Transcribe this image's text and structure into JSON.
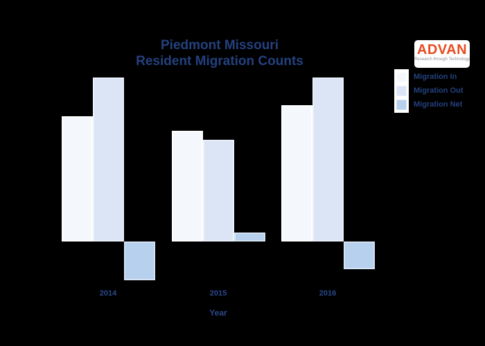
{
  "page": {
    "background": "#000000"
  },
  "logo": {
    "brand": "ADVAN",
    "tagline": "Research through Technology",
    "brand_color": "#e84a1f"
  },
  "chart_data": {
    "type": "bar",
    "title_line1": "Piedmont Missouri",
    "title_line2": "Resident Migration Counts",
    "xlabel": "Year",
    "ylabel": "",
    "categories": [
      "2014",
      "2015",
      "2016"
    ],
    "series": [
      {
        "name": "Migration In",
        "color": "#f4f8fd",
        "edge": "#ffffff",
        "values": [
          181,
          160,
          197
        ]
      },
      {
        "name": "Migration Out",
        "color": "#dbe5f6",
        "edge": "#ecf1fb",
        "values": [
          237,
          147,
          237
        ]
      },
      {
        "name": "Migration Net",
        "color": "#b6d0ed",
        "edge": "#d6e3f4",
        "values": [
          -56,
          13,
          -40
        ]
      }
    ],
    "legend_position": "upper right",
    "grid": false,
    "y_axis_visible": false,
    "baseline_value": 0,
    "text_color": "#24417f",
    "background_color": "#000000"
  }
}
